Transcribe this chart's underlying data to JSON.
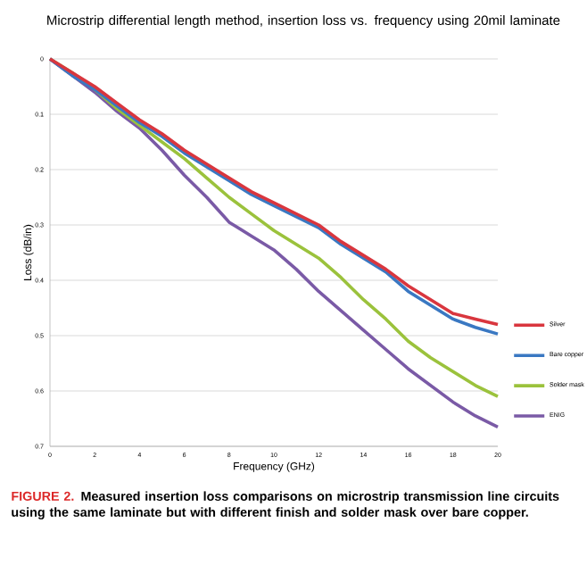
{
  "chart_data": {
    "type": "line",
    "title": "Microstrip differential length method, insertion loss vs. frequency using 20mil laminate",
    "xlabel": "Frequency (GHz)",
    "ylabel": "Loss (dB/in)",
    "x": [
      0,
      1,
      2,
      3,
      4,
      5,
      6,
      7,
      8,
      9,
      10,
      11,
      12,
      13,
      14,
      15,
      16,
      17,
      18,
      19,
      20
    ],
    "series": [
      {
        "name": "Silver",
        "color": "#d9363e",
        "values": [
          0,
          0.025,
          0.05,
          0.08,
          0.11,
          0.135,
          0.165,
          0.19,
          0.215,
          0.24,
          0.26,
          0.28,
          0.3,
          0.33,
          0.355,
          0.38,
          0.41,
          0.435,
          0.46,
          0.47,
          0.48
        ]
      },
      {
        "name": "Bare copper",
        "color": "#3a78c2",
        "values": [
          0,
          0.03,
          0.055,
          0.085,
          0.115,
          0.14,
          0.17,
          0.195,
          0.22,
          0.245,
          0.265,
          0.285,
          0.305,
          0.335,
          0.36,
          0.385,
          0.42,
          0.445,
          0.47,
          0.485,
          0.497
        ]
      },
      {
        "name": "Solder mask",
        "color": "#9bc23c",
        "values": [
          0,
          0.025,
          0.055,
          0.09,
          0.12,
          0.15,
          0.18,
          0.215,
          0.25,
          0.28,
          0.31,
          0.335,
          0.36,
          0.395,
          0.435,
          0.47,
          0.51,
          0.54,
          0.565,
          0.59,
          0.61
        ]
      },
      {
        "name": "ENIG",
        "color": "#7a5aa6",
        "values": [
          0,
          0.03,
          0.06,
          0.095,
          0.125,
          0.165,
          0.21,
          0.25,
          0.295,
          0.32,
          0.345,
          0.38,
          0.42,
          0.455,
          0.49,
          0.525,
          0.56,
          0.59,
          0.62,
          0.645,
          0.665
        ]
      }
    ],
    "xlim": [
      0,
      20
    ],
    "xticks": [
      0,
      2,
      4,
      6,
      8,
      10,
      12,
      14,
      16,
      18,
      20
    ],
    "ylim": [
      0.7,
      0
    ],
    "yticks": [
      0,
      0.1,
      0.2,
      0.3,
      0.4,
      0.5,
      0.6,
      0.7
    ],
    "grid": "y",
    "legend": "right",
    "marker": "none",
    "line_style": "solid",
    "annotations": [
      "FIGURE 2.",
      "Measured insertion loss comparisons on microstrip transmission line circuits using the same laminate but with different finish and solder mask over bare copper."
    ]
  }
}
